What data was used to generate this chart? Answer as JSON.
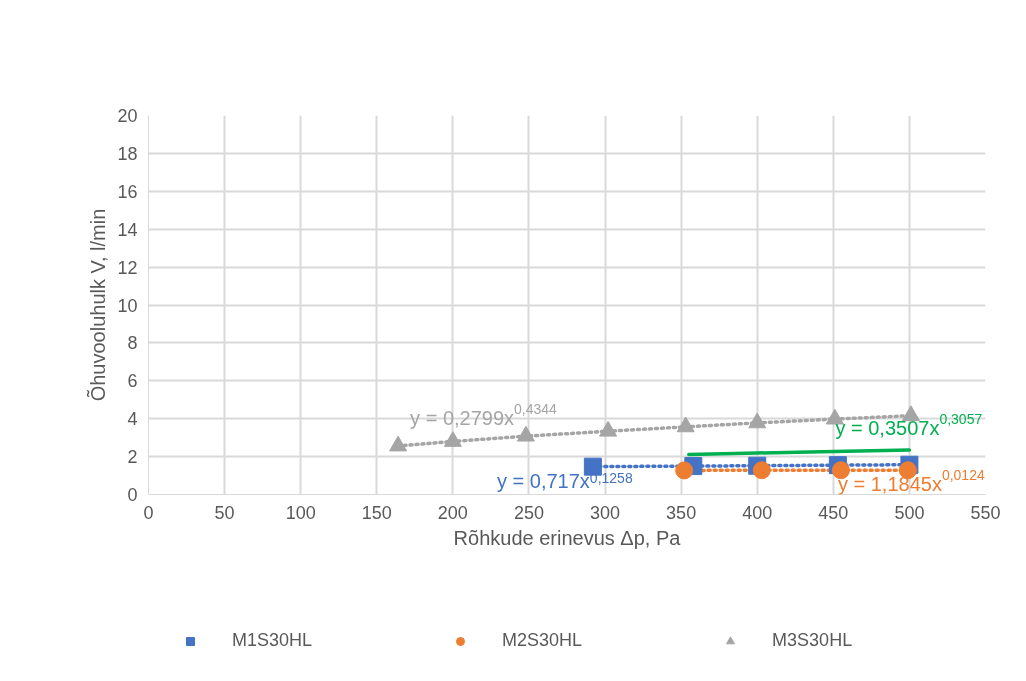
{
  "chart_data": {
    "type": "scatter",
    "xlabel": "Rõhkude erinevus Δp, Pa",
    "ylabel": "Õhuvooluhulk V, l/min",
    "xlim": [
      0,
      550
    ],
    "xticks": [
      0,
      50,
      100,
      150,
      200,
      250,
      300,
      350,
      400,
      450,
      500,
      550
    ],
    "ylim": [
      0,
      20
    ],
    "yticks": [
      0,
      2,
      4,
      6,
      8,
      10,
      12,
      14,
      16,
      18,
      20
    ],
    "grid": true,
    "legend": "bottom",
    "series": [
      {
        "type": "line",
        "line_style": "dotted",
        "color": "#4472c4",
        "x": [
          292,
          358,
          400,
          453,
          500
        ],
        "values": [
          1.47,
          1.5,
          1.52,
          1.55,
          1.57
        ]
      },
      {
        "type": "line",
        "line_style": "dotted",
        "color": "#ed7d31",
        "x": [
          352,
          403,
          455,
          499
        ],
        "values": [
          1.27,
          1.28,
          1.28,
          1.28
        ]
      },
      {
        "type": "line",
        "line_style": "dotted",
        "color": "#a5a5a5",
        "x": [
          164,
          200,
          248,
          302,
          353,
          400,
          451,
          501
        ],
        "values": [
          2.56,
          2.8,
          3.08,
          3.34,
          3.57,
          3.78,
          3.98,
          4.16
        ]
      },
      {
        "type": "line",
        "line_style": "solid",
        "color": "#00b050",
        "x": [
          355,
          400,
          450,
          500
        ],
        "values": [
          2.11,
          2.19,
          2.27,
          2.35
        ]
      },
      {
        "name": "M1S30HL",
        "marker": "square",
        "color": "#4472c4",
        "x": [
          292,
          358,
          400,
          453,
          500
        ],
        "values": [
          1.47,
          1.5,
          1.52,
          1.55,
          1.57
        ]
      },
      {
        "name": "M2S30HL",
        "marker": "circle",
        "color": "#ed7d31",
        "x": [
          352,
          403,
          455,
          499
        ],
        "values": [
          1.27,
          1.28,
          1.28,
          1.28
        ]
      },
      {
        "name": "M3S30HL",
        "marker": "triangle",
        "color": "#a5a5a5",
        "x": [
          164,
          200,
          248,
          302,
          353,
          400,
          451,
          501
        ],
        "values": [
          2.56,
          2.8,
          3.08,
          3.34,
          3.57,
          3.78,
          3.98,
          4.16
        ]
      }
    ],
    "annotations": [
      "y = 0,717x$^{0,1258}$",
      "y = 1,1845x$^{0,0124}$",
      "y = 0,2799x$^{0,4344}$",
      "y = 0,3507x$^{0,3057}$"
    ]
  }
}
